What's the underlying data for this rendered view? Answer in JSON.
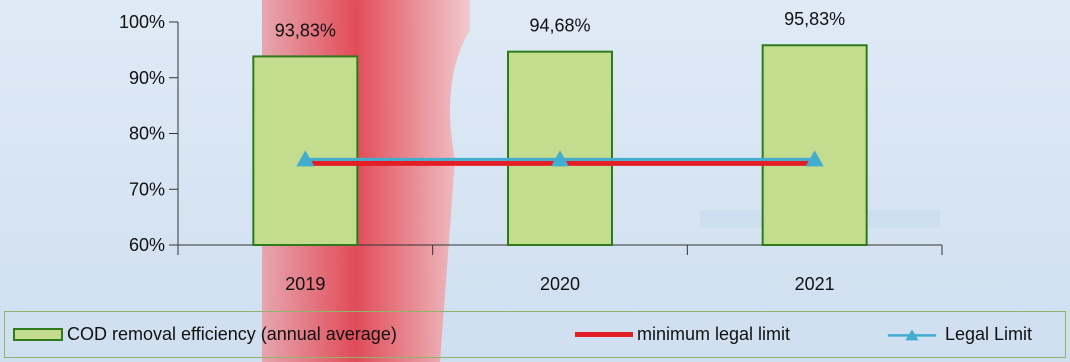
{
  "colors": {
    "bar_fill": "#c3dc8e",
    "bar_stroke": "#2f7a1c",
    "min_limit_line": "#e41e26",
    "legal_limit_line": "#42adcf",
    "axis": "#333333",
    "legend_border": "#8fb56a"
  },
  "chart_data": {
    "type": "bar",
    "categories": [
      "2019",
      "2020",
      "2021"
    ],
    "series": [
      {
        "name": "COD removal efficiency (annual average)",
        "kind": "bar",
        "values": [
          93.83,
          94.68,
          95.83
        ],
        "labels": [
          "93,83%",
          "94,68%",
          "95,83%"
        ]
      },
      {
        "name": "minimum legal limit",
        "kind": "line",
        "values": [
          75,
          75,
          75
        ]
      },
      {
        "name": "Legal Limit",
        "kind": "line-marker",
        "marker": "triangle",
        "values": [
          75,
          75,
          75
        ]
      }
    ],
    "ylim": [
      60,
      100
    ],
    "yticks": [
      {
        "value": 60,
        "label": "60%"
      },
      {
        "value": 70,
        "label": "70%"
      },
      {
        "value": 80,
        "label": "80%"
      },
      {
        "value": 90,
        "label": "90%"
      },
      {
        "value": 100,
        "label": "100%"
      }
    ],
    "grid": false,
    "legend_position": "bottom"
  },
  "legend": {
    "items": [
      {
        "label": "COD removal efficiency (annual average)",
        "icon": "bar-swatch"
      },
      {
        "label": "minimum legal limit",
        "icon": "red-line"
      },
      {
        "label": "Legal Limit",
        "icon": "triangle-line"
      }
    ]
  }
}
